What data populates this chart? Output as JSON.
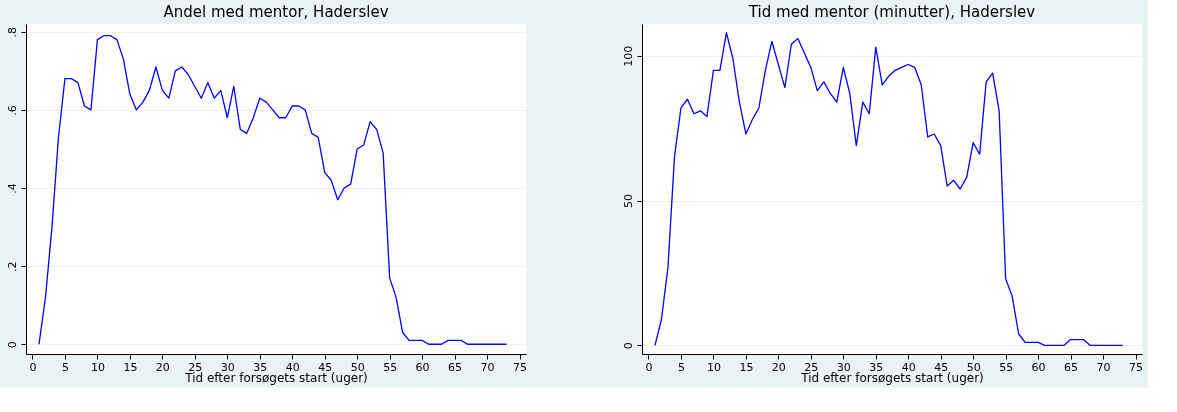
{
  "chart_data": [
    {
      "type": "line",
      "title": "Andel med mentor, Haderslev",
      "xlabel": "Tid efter forsøgets start (uger)",
      "x": [
        1,
        2,
        3,
        4,
        5,
        6,
        7,
        8,
        9,
        10,
        11,
        12,
        13,
        14,
        15,
        16,
        17,
        18,
        19,
        20,
        21,
        22,
        23,
        24,
        25,
        26,
        27,
        28,
        29,
        30,
        31,
        32,
        33,
        34,
        35,
        36,
        37,
        38,
        39,
        40,
        41,
        42,
        43,
        44,
        45,
        46,
        47,
        48,
        49,
        50,
        51,
        52,
        53,
        54,
        55,
        56,
        57,
        58,
        59,
        60,
        61,
        62,
        63,
        64,
        65,
        66,
        67,
        68,
        69,
        70,
        71,
        72,
        73
      ],
      "series": [
        {
          "color": "#0000ff",
          "values": [
            0,
            0.12,
            0.3,
            0.53,
            0.68,
            0.68,
            0.67,
            0.61,
            0.6,
            0.78,
            0.79,
            0.79,
            0.78,
            0.73,
            0.64,
            0.6,
            0.62,
            0.65,
            0.71,
            0.65,
            0.63,
            0.7,
            0.71,
            0.69,
            0.66,
            0.63,
            0.67,
            0.63,
            0.65,
            0.58,
            0.66,
            0.55,
            0.54,
            0.58,
            0.63,
            0.62,
            0.6,
            0.58,
            0.58,
            0.61,
            0.61,
            0.6,
            0.54,
            0.53,
            0.44,
            0.42,
            0.37,
            0.4,
            0.41,
            0.5,
            0.51,
            0.57,
            0.55,
            0.49,
            0.17,
            0.12,
            0.03,
            0.01,
            0.01,
            0.01,
            0,
            0,
            0,
            0.01,
            0.01,
            0.01,
            0,
            0,
            0,
            0,
            0,
            0,
            0
          ]
        }
      ],
      "xlim": [
        -1,
        76
      ],
      "xticks": [
        0,
        5,
        10,
        15,
        20,
        25,
        30,
        35,
        40,
        45,
        50,
        55,
        60,
        65,
        70,
        75
      ],
      "ylim": [
        -0.025,
        0.82
      ],
      "yticks": [
        {
          "value": 0,
          "label": "0"
        },
        {
          "value": 0.2,
          "label": ".2"
        },
        {
          "value": 0.4,
          "label": ".4"
        },
        {
          "value": 0.6,
          "label": ".6"
        },
        {
          "value": 0.8,
          "label": ".8"
        }
      ],
      "grid": "y",
      "marker": "none",
      "line_style": "solid"
    },
    {
      "type": "line",
      "title": "Tid med mentor (minutter), Haderslev",
      "xlabel": "Tid efter forsøgets start (uger)",
      "x": [
        1,
        2,
        3,
        4,
        5,
        6,
        7,
        8,
        9,
        10,
        11,
        12,
        13,
        14,
        15,
        16,
        17,
        18,
        19,
        20,
        21,
        22,
        23,
        24,
        25,
        26,
        27,
        28,
        29,
        30,
        31,
        32,
        33,
        34,
        35,
        36,
        37,
        38,
        39,
        40,
        41,
        42,
        43,
        44,
        45,
        46,
        47,
        48,
        49,
        50,
        51,
        52,
        53,
        54,
        55,
        56,
        57,
        58,
        59,
        60,
        61,
        62,
        63,
        64,
        65,
        66,
        67,
        68,
        69,
        70,
        71,
        72,
        73
      ],
      "series": [
        {
          "color": "#0000ff",
          "values": [
            0,
            9,
            27,
            65,
            82,
            85,
            80,
            81,
            79,
            95,
            95,
            108,
            99,
            84,
            73,
            78,
            82,
            95,
            105,
            97,
            89,
            104,
            106,
            101,
            96,
            88,
            91,
            87,
            84,
            96,
            87,
            69,
            84,
            80,
            103,
            90,
            93,
            95,
            96,
            97,
            96,
            90,
            72,
            73,
            69,
            55,
            57,
            54,
            58,
            70,
            66,
            91,
            94,
            81,
            23,
            17,
            4,
            1,
            1,
            1,
            0,
            0,
            0,
            0,
            2,
            2,
            2,
            0,
            0,
            0,
            0,
            0,
            0
          ]
        }
      ],
      "xlim": [
        -1,
        76
      ],
      "xticks": [
        0,
        5,
        10,
        15,
        20,
        25,
        30,
        35,
        40,
        45,
        50,
        55,
        60,
        65,
        70,
        75
      ],
      "ylim": [
        -3,
        111
      ],
      "yticks": [
        0,
        50,
        100
      ],
      "grid": "y",
      "marker": "none",
      "line_style": "solid"
    }
  ]
}
